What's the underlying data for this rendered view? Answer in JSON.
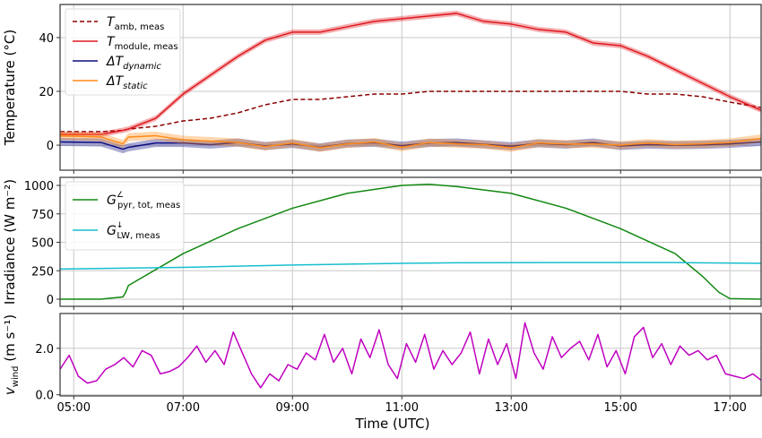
{
  "chart_data": [
    {
      "type": "line",
      "ylabel": "Temperature (°C)",
      "ylim": [
        -9.3,
        52.3
      ],
      "yticks": [
        0,
        20,
        40
      ],
      "xlim": [
        4.75,
        17.57
      ],
      "grid": true,
      "legend_placement": "top-left",
      "band_width": {
        "Tmodule": 1.0,
        "dT": 1.5
      },
      "x": [
        4.75,
        5.5,
        5.9,
        6.0,
        6.5,
        7,
        7.5,
        8,
        8.5,
        9,
        9.5,
        10,
        10.5,
        11,
        11.5,
        12,
        12.5,
        13,
        13.5,
        14,
        14.5,
        15,
        15.5,
        16,
        16.5,
        17,
        17.57
      ],
      "series": [
        {
          "key": "Tamb",
          "legend_main": "T",
          "legend_sub": "amb, meas",
          "legend_sub_italic": false,
          "color": "#8b0000",
          "dash": "5,3",
          "values": [
            5,
            5,
            5.5,
            6,
            7,
            9,
            10,
            12,
            15,
            17,
            17,
            18,
            19,
            19,
            20,
            20,
            20,
            20,
            20,
            20,
            20,
            20,
            19,
            19,
            18,
            16,
            14
          ]
        },
        {
          "key": "Tmodule",
          "legend_main": "T",
          "legend_sub": "module, meas",
          "legend_sub_italic": false,
          "color": "#e0191f",
          "band": true,
          "values": [
            4,
            4,
            5.5,
            6,
            10,
            19,
            26,
            33,
            39,
            42,
            42,
            44,
            46,
            47,
            48,
            49,
            46,
            45,
            43,
            42,
            38,
            37,
            33,
            28,
            23,
            18,
            13
          ]
        },
        {
          "key": "dTdyn",
          "legend_main": "ΔT",
          "legend_sub": "dynamic",
          "legend_sub_italic": true,
          "color": "#0b0b80",
          "band": true,
          "values": [
            1.2,
            1.0,
            -1.5,
            -0.8,
            0.8,
            0.8,
            0.2,
            1.0,
            -0.3,
            0.5,
            -0.8,
            0.6,
            0.9,
            -0.2,
            0.8,
            1.0,
            0.3,
            -0.4,
            0.7,
            0.2,
            1.0,
            -0.3,
            0.2,
            0.0,
            0.1,
            0.5,
            1.2
          ]
        },
        {
          "key": "dTsta",
          "legend_main": "ΔT",
          "legend_sub": "static",
          "legend_sub_italic": true,
          "color": "#ff8c1a",
          "band": true,
          "values": [
            3.5,
            3.0,
            0.5,
            3.0,
            3.5,
            2.0,
            1.5,
            1.0,
            -0.5,
            0.8,
            -1.0,
            0.5,
            1.2,
            -0.8,
            1.0,
            0.5,
            0.2,
            -1.0,
            0.8,
            0.4,
            0.5,
            0.0,
            0.8,
            0.2,
            0.5,
            1.0,
            2.5
          ]
        }
      ]
    },
    {
      "type": "line",
      "ylabel": "Irradiance (W m⁻²)",
      "ylim": [
        -63,
        1071
      ],
      "yticks": [
        0,
        250,
        500,
        750,
        1000
      ],
      "xlim": [
        4.75,
        17.57
      ],
      "grid": true,
      "legend_placement": "top-left",
      "series": [
        {
          "key": "Gpyr",
          "legend_main": "G",
          "legend_sup": "∠",
          "legend_sub": "pyr, tot, meas",
          "color": "#118811",
          "x": [
            4.75,
            5.5,
            5.8,
            5.9,
            5.95,
            6.0,
            7,
            8,
            9,
            10,
            11,
            11.5,
            12,
            13,
            14,
            15,
            16,
            16.5,
            16.8,
            17.0,
            17.57
          ],
          "values": [
            0,
            0,
            15,
            20,
            60,
            120,
            400,
            620,
            800,
            930,
            1000,
            1010,
            990,
            930,
            800,
            620,
            400,
            200,
            60,
            5,
            0
          ]
        },
        {
          "key": "GLW",
          "legend_main": "G",
          "legend_sup": "↓",
          "legend_sub": "LW, meas",
          "color": "#17becf",
          "x": [
            4.75,
            7,
            9,
            11,
            12,
            14,
            16,
            17.57
          ],
          "values": [
            265,
            280,
            300,
            315,
            320,
            322,
            322,
            315
          ]
        }
      ]
    },
    {
      "type": "line",
      "ylabel_main": "v",
      "ylabel_sub": "wind",
      "ylabel_unit": "(m s⁻¹)",
      "ylim": [
        -0.05,
        3.5
      ],
      "yticks": [
        0.0,
        2.0
      ],
      "ytick_labels": [
        "0.0",
        "2.0"
      ],
      "xlim": [
        4.75,
        17.57
      ],
      "xlabel": "Time (UTC)",
      "xticks": [
        5,
        7,
        9,
        11,
        13,
        15,
        17
      ],
      "xtick_labels": [
        "05:00",
        "07:00",
        "09:00",
        "11:00",
        "13:00",
        "15:00",
        "17:00"
      ],
      "grid": true,
      "series": [
        {
          "key": "wind",
          "color": "#bf00bf",
          "x_start": 4.75,
          "x_step": 0.1667,
          "values": [
            1.1,
            1.7,
            0.8,
            0.5,
            0.6,
            1.1,
            1.3,
            1.6,
            1.2,
            1.9,
            1.7,
            0.9,
            1.0,
            1.2,
            1.6,
            2.1,
            1.4,
            1.9,
            1.3,
            2.7,
            1.8,
            0.9,
            0.3,
            0.9,
            0.6,
            1.3,
            1.1,
            1.8,
            1.5,
            2.6,
            1.4,
            2.0,
            0.9,
            2.4,
            1.6,
            2.8,
            1.3,
            0.7,
            2.2,
            1.4,
            2.6,
            1.1,
            1.9,
            1.3,
            1.8,
            2.7,
            0.9,
            2.4,
            1.3,
            2.2,
            0.7,
            3.1,
            1.8,
            1.1,
            2.5,
            1.6,
            2.0,
            2.3,
            1.5,
            2.6,
            1.2,
            1.9,
            0.9,
            2.5,
            2.9,
            1.6,
            2.2,
            1.3,
            2.1,
            1.7,
            1.9,
            1.5,
            1.7,
            0.9,
            0.8,
            0.7,
            0.9,
            0.6
          ]
        }
      ]
    }
  ]
}
